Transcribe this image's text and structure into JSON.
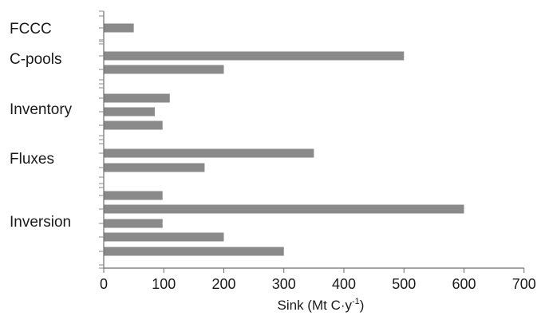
{
  "chart_data": {
    "type": "bar",
    "orientation": "horizontal",
    "groups": [
      {
        "label": "FCCC",
        "values": [
          50
        ]
      },
      {
        "label": "C-pools",
        "values": [
          500,
          200
        ]
      },
      {
        "label": "Inventory",
        "values": [
          110,
          85,
          98
        ]
      },
      {
        "label": "Fluxes",
        "values": [
          350,
          168
        ]
      },
      {
        "label": "Inversion",
        "values": [
          98,
          600,
          98,
          200,
          300
        ]
      }
    ],
    "xlabel": {
      "main": "Sink (Mt C·y",
      "sup": "-1",
      "close": ")"
    },
    "xticks": [
      "0",
      "100",
      "200",
      "300",
      "400",
      "500",
      "600",
      "700"
    ],
    "xlim": [
      0,
      700
    ],
    "grid": false,
    "bar_color": "#8a8a8a"
  }
}
